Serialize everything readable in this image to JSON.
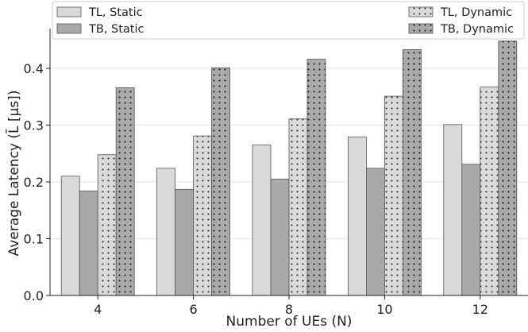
{
  "chart_data": {
    "type": "bar",
    "categories": [
      "4",
      "6",
      "8",
      "10",
      "12"
    ],
    "series": [
      {
        "name": "TL, Static",
        "values": [
          0.21,
          0.224,
          0.265,
          0.279,
          0.301
        ],
        "color": "#dadada",
        "pattern": "none"
      },
      {
        "name": "TB, Static",
        "values": [
          0.184,
          0.187,
          0.205,
          0.224,
          0.231
        ],
        "color": "#a9a9a9",
        "pattern": "none"
      },
      {
        "name": "TL, Dynamic",
        "values": [
          0.248,
          0.281,
          0.311,
          0.351,
          0.367
        ],
        "color": "#dadada",
        "pattern": "dots"
      },
      {
        "name": "TB, Dynamic",
        "values": [
          0.366,
          0.401,
          0.416,
          0.433,
          0.448
        ],
        "color": "#a9a9a9",
        "pattern": "dots"
      }
    ],
    "xlabel": "Number of UEs (N)",
    "ylabel": "Average Latency (L̄ [μs])",
    "ylim": [
      0.0,
      0.47
    ],
    "yticks": [
      "0.0",
      "0.1",
      "0.2",
      "0.3",
      "0.4"
    ],
    "grid": "horizontal",
    "legend_position": "top"
  }
}
